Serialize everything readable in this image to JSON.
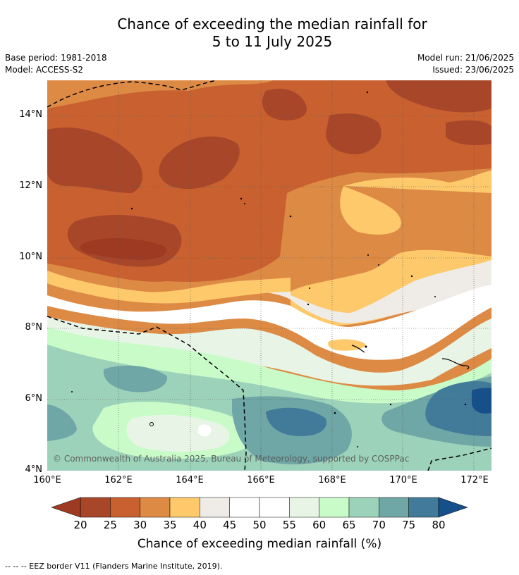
{
  "title_line1": "Chance of exceeding the median rainfall for",
  "title_line2": "5 to 11 July 2025",
  "base_period": "Base period: 1981-2018",
  "model": "Model: ACCESS-S2",
  "model_run": "Model run: 21/06/2025",
  "issued": "Issued: 23/06/2025",
  "copyright": "© Commonwealth of Australia 2025, Bureau of Meteorology, supported by COSPPac",
  "lat_labels": [
    "14°N",
    "12°N",
    "10°N",
    "8°N",
    "6°N",
    "4°N"
  ],
  "lon_labels": [
    "160°E",
    "162°E",
    "164°E",
    "166°E",
    "168°E",
    "170°E",
    "172°E"
  ],
  "colorbar": {
    "title": "Chance of exceeding median rainfall (%)",
    "ticks": [
      "20",
      "25",
      "30",
      "35",
      "40",
      "45",
      "50",
      "55",
      "60",
      "65",
      "70",
      "75",
      "80"
    ],
    "colors": [
      "#a8462a",
      "#c8612f",
      "#dd8a45",
      "#fdc96b",
      "#efebe6",
      "#ffffff",
      "#ffffff",
      "#e8f5e6",
      "#c9fbc9",
      "#9dd2ba",
      "#6fa6a6",
      "#427a9a"
    ],
    "under_color": "#9e3a22",
    "over_color": "#16508a"
  },
  "footnote": "-- -- -- EEZ border V11 (Flanders Marine Institute, 2019)."
}
